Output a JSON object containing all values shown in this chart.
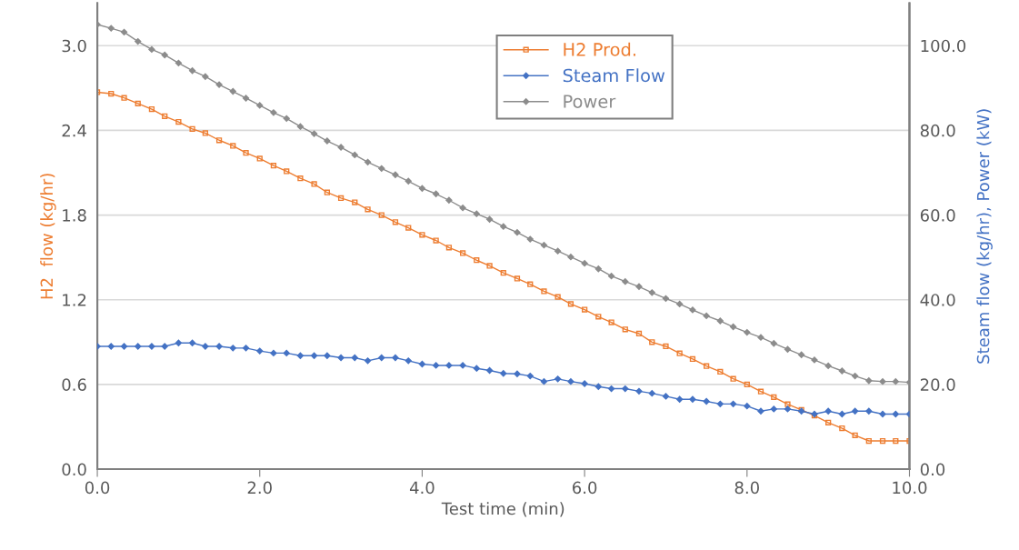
{
  "chart_data": {
    "type": "line",
    "xlabel": "Test time (min)",
    "ylabel": "H2  flow (kg/hr)",
    "y2label": "Steam flow (kg/hr), Power (kW)",
    "x": [
      0,
      0.17,
      0.33,
      0.5,
      0.67,
      0.83,
      1,
      1.17,
      1.33,
      1.5,
      1.67,
      1.83,
      2,
      2.17,
      2.33,
      2.5,
      2.67,
      2.83,
      3,
      3.17,
      3.33,
      3.5,
      3.67,
      3.83,
      4,
      4.17,
      4.33,
      4.5,
      4.67,
      4.83,
      5,
      5.17,
      5.33,
      5.5,
      5.67,
      5.83,
      6,
      6.17,
      6.33,
      6.5,
      6.67,
      6.83,
      7,
      7.17,
      7.33,
      7.5,
      7.67,
      7.83,
      8,
      8.17,
      8.33,
      8.5,
      8.67,
      8.83,
      9,
      9.17,
      9.33,
      9.5,
      9.67,
      9.83,
      10
    ],
    "series": [
      {
        "name": "H2 Prod.",
        "color": "#ed7d31",
        "marker": "square",
        "values": [
          2.67,
          2.66,
          2.63,
          2.59,
          2.55,
          2.5,
          2.46,
          2.41,
          2.38,
          2.33,
          2.29,
          2.24,
          2.2,
          2.15,
          2.11,
          2.06,
          2.02,
          1.96,
          1.92,
          1.89,
          1.84,
          1.8,
          1.75,
          1.71,
          1.66,
          1.62,
          1.57,
          1.53,
          1.48,
          1.44,
          1.39,
          1.35,
          1.31,
          1.26,
          1.22,
          1.17,
          1.13,
          1.08,
          1.04,
          0.99,
          0.96,
          0.9,
          0.87,
          0.82,
          0.78,
          0.73,
          0.69,
          0.64,
          0.6,
          0.55,
          0.51,
          0.46,
          0.42,
          0.38,
          0.33,
          0.29,
          0.24,
          0.2,
          0.2,
          0.2,
          0.2
        ]
      },
      {
        "name": "Steam Flow",
        "color": "#4472c4",
        "marker": "diamond",
        "axis": "y2",
        "values": [
          29.0,
          29.0,
          29.0,
          29.0,
          29.0,
          29.0,
          29.8,
          29.8,
          29.0,
          29.0,
          28.6,
          28.6,
          27.9,
          27.4,
          27.4,
          26.8,
          26.8,
          26.8,
          26.3,
          26.3,
          25.6,
          26.3,
          26.3,
          25.6,
          24.8,
          24.5,
          24.5,
          24.5,
          23.8,
          23.3,
          22.6,
          22.5,
          22.0,
          20.7,
          21.3,
          20.7,
          20.2,
          19.5,
          19.0,
          19.0,
          18.4,
          17.9,
          17.2,
          16.5,
          16.5,
          16.0,
          15.4,
          15.4,
          14.9,
          13.7,
          14.2,
          14.2,
          13.7,
          13.0,
          13.7,
          13.0,
          13.7,
          13.7,
          13.0,
          13.0,
          13.0
        ]
      },
      {
        "name": "Power",
        "color": "#8c8c8c",
        "marker": "diamond",
        "axis": "y2",
        "values": [
          105.0,
          104.1,
          103.2,
          101.0,
          99.1,
          97.8,
          95.9,
          94.1,
          92.7,
          90.8,
          89.2,
          87.6,
          85.9,
          84.2,
          82.8,
          80.9,
          79.2,
          77.5,
          76.0,
          74.2,
          72.5,
          71.0,
          69.5,
          68.0,
          66.3,
          65.0,
          63.5,
          61.7,
          60.3,
          59.0,
          57.3,
          55.9,
          54.3,
          52.9,
          51.5,
          50.1,
          48.6,
          47.3,
          45.6,
          44.3,
          43.1,
          41.7,
          40.3,
          39.0,
          37.6,
          36.2,
          35.0,
          33.6,
          32.3,
          31.1,
          29.7,
          28.3,
          27.0,
          25.8,
          24.4,
          23.2,
          22.0,
          20.9,
          20.7,
          20.7,
          20.5
        ]
      }
    ],
    "xlim": [
      0,
      10
    ],
    "xticks": [
      {
        "value": 0,
        "label": "0.0"
      },
      {
        "value": 2,
        "label": "2.0"
      },
      {
        "value": 4,
        "label": "4.0"
      },
      {
        "value": 6,
        "label": "6.0"
      },
      {
        "value": 8,
        "label": "8.0"
      },
      {
        "value": 10,
        "label": "10.0"
      }
    ],
    "ylim": [
      0,
      3.3
    ],
    "yticks": [
      {
        "value": 0,
        "label": "0.0"
      },
      {
        "value": 0.6,
        "label": "0.6"
      },
      {
        "value": 1.2,
        "label": "1.2"
      },
      {
        "value": 1.8,
        "label": "1.8"
      },
      {
        "value": 2.4,
        "label": "2.4"
      },
      {
        "value": 3.0,
        "label": "3.0"
      }
    ],
    "y2lim": [
      0,
      110
    ],
    "y2ticks": [
      {
        "value": 0,
        "label": "0.0"
      },
      {
        "value": 20,
        "label": "20.0"
      },
      {
        "value": 40,
        "label": "40.0"
      },
      {
        "value": 60,
        "label": "60.0"
      },
      {
        "value": 80,
        "label": "80.0"
      },
      {
        "value": 100,
        "label": "100.0"
      }
    ],
    "grid": "y",
    "legend": "top",
    "line_style": "solid"
  }
}
